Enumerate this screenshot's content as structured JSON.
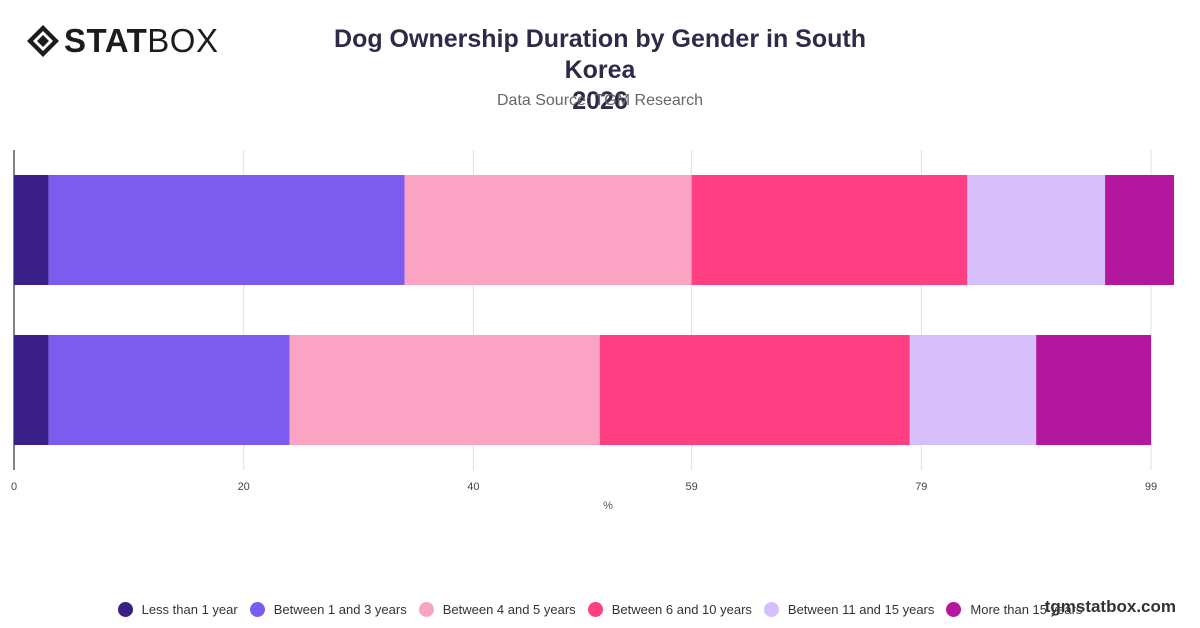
{
  "brand": {
    "bold": "STAT",
    "light": "BOX"
  },
  "title_line1": "Dog Ownership Duration by Gender in South Korea",
  "title_line2": "2026",
  "subtitle": "Data Source: TGM Research",
  "watermark": "tgmstatbox.com",
  "chart_data": {
    "type": "bar",
    "orientation": "horizontal",
    "stacked": true,
    "xlabel": "%",
    "xlim": [
      0,
      101
    ],
    "tick_values": [
      0,
      20,
      40,
      59,
      79,
      99
    ],
    "tick_labels": [
      "0",
      "20",
      "40",
      "59",
      "79",
      "99"
    ],
    "grid": true,
    "legend_position": "bottom",
    "categories": [
      "",
      ""
    ],
    "series": [
      {
        "name": "Less than 1 year",
        "color": "#3a1f87",
        "values": [
          3,
          3
        ]
      },
      {
        "name": "Between 1 and 3 years",
        "color": "#7b5cef",
        "values": [
          31,
          21
        ]
      },
      {
        "name": "Between 4 and 5 years",
        "color": "#fba3c3",
        "values": [
          25,
          27
        ]
      },
      {
        "name": "Between 6 and 10 years",
        "color": "#ff3f82",
        "values": [
          24,
          27
        ]
      },
      {
        "name": "Between 11 and 15 years",
        "color": "#d6bffb",
        "values": [
          12,
          11
        ]
      },
      {
        "name": "More than 15 years",
        "color": "#b3179e",
        "values": [
          6,
          10
        ]
      }
    ]
  }
}
